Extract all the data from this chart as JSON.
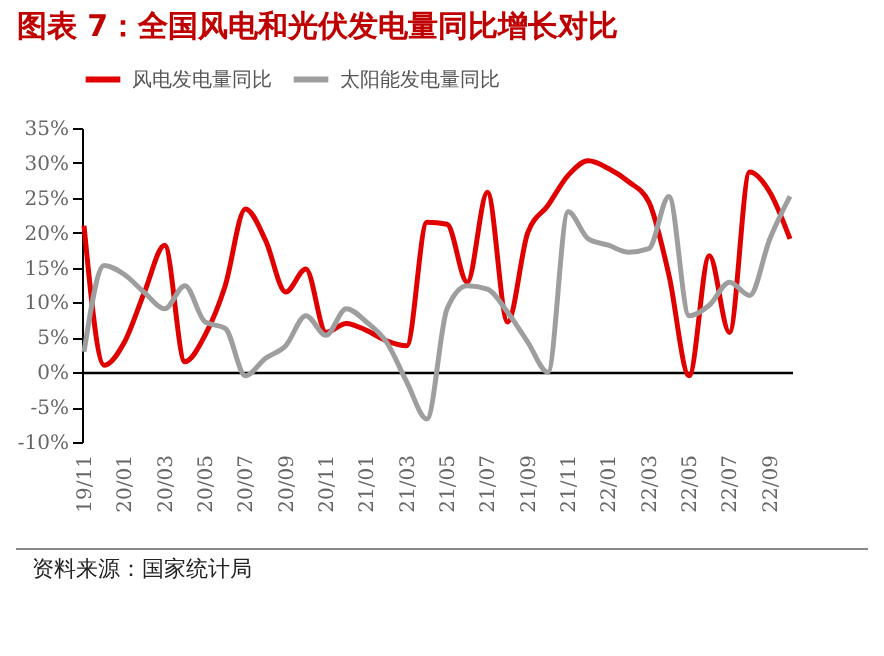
{
  "chart_data": {
    "type": "line",
    "title": "图表 7：全国风电和光伏发电量同比增长对比",
    "categories": [
      "19/11",
      null,
      "20/01",
      null,
      "20/03",
      null,
      "20/05",
      null,
      "20/07",
      null,
      "20/09",
      null,
      "20/11",
      null,
      "21/01",
      null,
      "21/03",
      null,
      "21/05",
      null,
      "21/07",
      null,
      "21/09",
      null,
      "21/11",
      null,
      "22/01",
      null,
      "22/03",
      null,
      "22/05",
      null,
      "22/07",
      null,
      "22/09",
      null
    ],
    "series": [
      {
        "name": "风电发电量同比",
        "color": "#e00000",
        "values": [
          21.0,
          1.0,
          4.3,
          11.5,
          18.2,
          1.5,
          5.3,
          12.4,
          23.4,
          18.9,
          11.5,
          14.8,
          5.7,
          7.0,
          6.0,
          4.5,
          3.8,
          21.5,
          21.2,
          12.9,
          25.8,
          7.2,
          20.0,
          23.9,
          28.2,
          30.3,
          29.2,
          27.3,
          24.4,
          13.9,
          -0.5,
          16.7,
          5.7,
          28.7,
          25.8,
          19.1
        ]
      },
      {
        "name": "太阳能发电量同比",
        "color": "#9e9e9e",
        "values": [
          2.9,
          15.3,
          14.0,
          11.4,
          9.1,
          12.4,
          7.2,
          6.3,
          -0.5,
          2.0,
          3.8,
          8.1,
          5.3,
          9.1,
          7.2,
          4.3,
          -1.4,
          -6.7,
          9.1,
          12.4,
          11.9,
          8.6,
          4.3,
          0.0,
          23.0,
          19.1,
          18.2,
          17.2,
          17.7,
          25.2,
          8.1,
          9.6,
          12.9,
          11.0,
          19.1,
          25.2
        ]
      }
    ],
    "ylim": [
      -10,
      35
    ],
    "yticks": [
      {
        "value": -10,
        "label": "-10%"
      },
      {
        "value": -5,
        "label": "-5%"
      },
      {
        "value": 0,
        "label": "0%"
      },
      {
        "value": 5,
        "label": "5%"
      },
      {
        "value": 10,
        "label": "10%"
      },
      {
        "value": 15,
        "label": "15%"
      },
      {
        "value": 20,
        "label": "20%"
      },
      {
        "value": 25,
        "label": "25%"
      },
      {
        "value": 30,
        "label": "30%"
      },
      {
        "value": 35,
        "label": "35%"
      }
    ],
    "legend": "top",
    "annotations": [
      "资料来源：国家统计局"
    ]
  }
}
